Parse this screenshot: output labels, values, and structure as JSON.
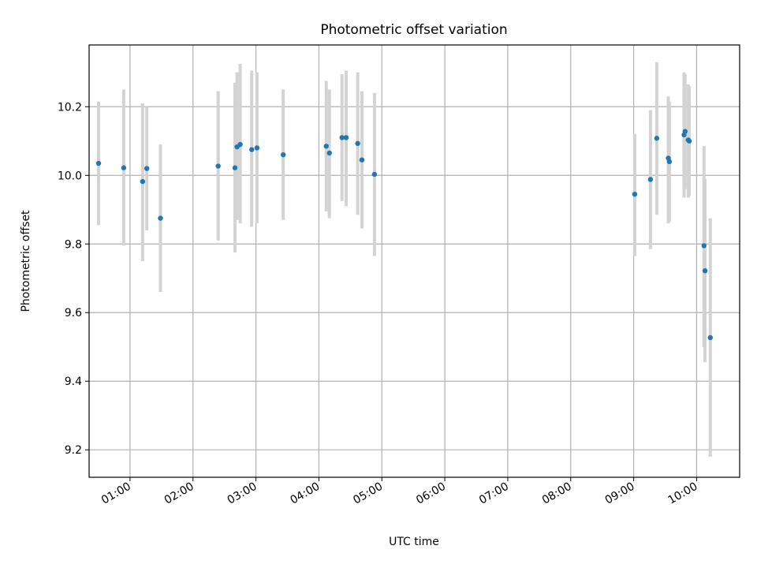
{
  "chart_data": {
    "type": "scatter",
    "title": "Photometric offset variation",
    "xlabel": "UTC time",
    "ylabel": "Photometric offset",
    "x_unit": "hours (UTC)",
    "xlim": [
      "00:21",
      "10:41"
    ],
    "ylim": [
      9.12,
      10.38
    ],
    "x_ticks": [
      "01:00",
      "02:00",
      "03:00",
      "04:00",
      "05:00",
      "06:00",
      "07:00",
      "08:00",
      "09:00",
      "10:00"
    ],
    "y_ticks": [
      "9.2",
      "9.4",
      "9.6",
      "9.8",
      "10.0",
      "10.2"
    ],
    "grid": true,
    "colors": {
      "points": "#1f77b4",
      "errorbars": "#d3d3d3",
      "grid": "#b0b0b0"
    },
    "series": [
      {
        "points": [
          {
            "x": "00:30",
            "y": 10.035,
            "lo": 9.855,
            "hi": 10.215
          },
          {
            "x": "00:54",
            "y": 10.022,
            "lo": 9.795,
            "hi": 10.25
          },
          {
            "x": "01:12",
            "y": 9.982,
            "lo": 9.75,
            "hi": 10.21
          },
          {
            "x": "01:16",
            "y": 10.02,
            "lo": 9.84,
            "hi": 10.2
          },
          {
            "x": "01:29",
            "y": 9.875,
            "lo": 9.66,
            "hi": 10.09
          },
          {
            "x": "02:24",
            "y": 10.027,
            "lo": 9.81,
            "hi": 10.245
          },
          {
            "x": "02:40",
            "y": 10.022,
            "lo": 9.775,
            "hi": 10.27
          },
          {
            "x": "02:42",
            "y": 10.083,
            "lo": 9.87,
            "hi": 10.3
          },
          {
            "x": "02:45",
            "y": 10.09,
            "lo": 9.86,
            "hi": 10.325
          },
          {
            "x": "02:56",
            "y": 10.075,
            "lo": 9.85,
            "hi": 10.305
          },
          {
            "x": "03:01",
            "y": 10.08,
            "lo": 9.86,
            "hi": 10.3
          },
          {
            "x": "03:26",
            "y": 10.06,
            "lo": 9.87,
            "hi": 10.25
          },
          {
            "x": "04:07",
            "y": 10.085,
            "lo": 9.895,
            "hi": 10.275
          },
          {
            "x": "04:10",
            "y": 10.065,
            "lo": 9.875,
            "hi": 10.25
          },
          {
            "x": "04:22",
            "y": 10.11,
            "lo": 9.925,
            "hi": 10.295
          },
          {
            "x": "04:26",
            "y": 10.11,
            "lo": 9.91,
            "hi": 10.305
          },
          {
            "x": "04:37",
            "y": 10.093,
            "lo": 9.885,
            "hi": 10.3
          },
          {
            "x": "04:41",
            "y": 10.045,
            "lo": 9.845,
            "hi": 10.245
          },
          {
            "x": "04:53",
            "y": 10.003,
            "lo": 9.765,
            "hi": 10.24
          },
          {
            "x": "09:01",
            "y": 9.945,
            "lo": 9.765,
            "hi": 10.12
          },
          {
            "x": "09:16",
            "y": 9.988,
            "lo": 9.785,
            "hi": 10.19
          },
          {
            "x": "09:22",
            "y": 10.108,
            "lo": 9.885,
            "hi": 10.33
          },
          {
            "x": "09:33",
            "y": 10.05,
            "lo": 9.86,
            "hi": 10.23
          },
          {
            "x": "09:34",
            "y": 10.04,
            "lo": 9.865,
            "hi": 10.215
          },
          {
            "x": "09:48",
            "y": 10.118,
            "lo": 9.935,
            "hi": 10.3
          },
          {
            "x": "09:49",
            "y": 10.128,
            "lo": 9.96,
            "hi": 10.295
          },
          {
            "x": "09:52",
            "y": 10.103,
            "lo": 9.935,
            "hi": 10.265
          },
          {
            "x": "09:53",
            "y": 10.1,
            "lo": 9.94,
            "hi": 10.26
          },
          {
            "x": "10:07",
            "y": 9.795,
            "lo": 9.5,
            "hi": 10.085
          },
          {
            "x": "10:08",
            "y": 9.722,
            "lo": 9.455,
            "hi": 9.99
          },
          {
            "x": "10:13",
            "y": 9.527,
            "lo": 9.18,
            "hi": 9.875
          }
        ]
      }
    ]
  }
}
